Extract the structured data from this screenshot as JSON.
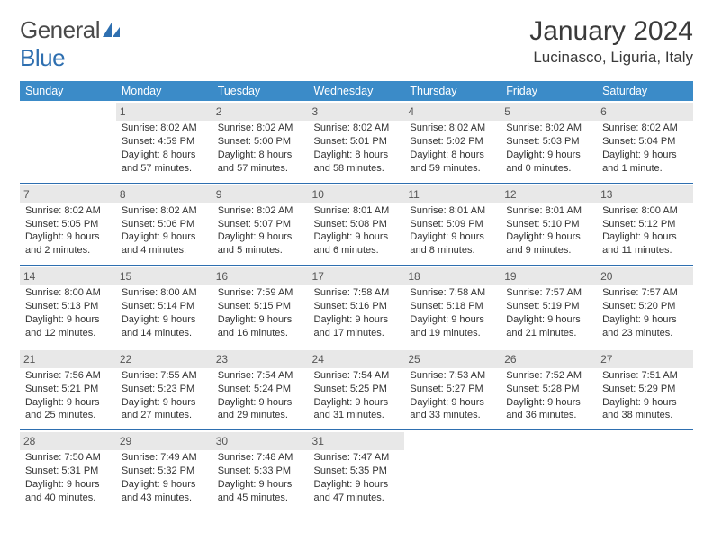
{
  "brand": {
    "word1": "General",
    "word2": "Blue"
  },
  "title": {
    "month": "January 2024",
    "location": "Lucinasco, Liguria, Italy"
  },
  "colors": {
    "header_bg": "#3b8bc8",
    "daynum_bg": "#e8e8e8",
    "rule": "#2e6fb0",
    "text": "#333333"
  },
  "day_headers": [
    "Sunday",
    "Monday",
    "Tuesday",
    "Wednesday",
    "Thursday",
    "Friday",
    "Saturday"
  ],
  "weeks": [
    [
      null,
      {
        "n": "1",
        "sr": "Sunrise: 8:02 AM",
        "ss": "Sunset: 4:59 PM",
        "dl": "Daylight: 8 hours and 57 minutes."
      },
      {
        "n": "2",
        "sr": "Sunrise: 8:02 AM",
        "ss": "Sunset: 5:00 PM",
        "dl": "Daylight: 8 hours and 57 minutes."
      },
      {
        "n": "3",
        "sr": "Sunrise: 8:02 AM",
        "ss": "Sunset: 5:01 PM",
        "dl": "Daylight: 8 hours and 58 minutes."
      },
      {
        "n": "4",
        "sr": "Sunrise: 8:02 AM",
        "ss": "Sunset: 5:02 PM",
        "dl": "Daylight: 8 hours and 59 minutes."
      },
      {
        "n": "5",
        "sr": "Sunrise: 8:02 AM",
        "ss": "Sunset: 5:03 PM",
        "dl": "Daylight: 9 hours and 0 minutes."
      },
      {
        "n": "6",
        "sr": "Sunrise: 8:02 AM",
        "ss": "Sunset: 5:04 PM",
        "dl": "Daylight: 9 hours and 1 minute."
      }
    ],
    [
      {
        "n": "7",
        "sr": "Sunrise: 8:02 AM",
        "ss": "Sunset: 5:05 PM",
        "dl": "Daylight: 9 hours and 2 minutes."
      },
      {
        "n": "8",
        "sr": "Sunrise: 8:02 AM",
        "ss": "Sunset: 5:06 PM",
        "dl": "Daylight: 9 hours and 4 minutes."
      },
      {
        "n": "9",
        "sr": "Sunrise: 8:02 AM",
        "ss": "Sunset: 5:07 PM",
        "dl": "Daylight: 9 hours and 5 minutes."
      },
      {
        "n": "10",
        "sr": "Sunrise: 8:01 AM",
        "ss": "Sunset: 5:08 PM",
        "dl": "Daylight: 9 hours and 6 minutes."
      },
      {
        "n": "11",
        "sr": "Sunrise: 8:01 AM",
        "ss": "Sunset: 5:09 PM",
        "dl": "Daylight: 9 hours and 8 minutes."
      },
      {
        "n": "12",
        "sr": "Sunrise: 8:01 AM",
        "ss": "Sunset: 5:10 PM",
        "dl": "Daylight: 9 hours and 9 minutes."
      },
      {
        "n": "13",
        "sr": "Sunrise: 8:00 AM",
        "ss": "Sunset: 5:12 PM",
        "dl": "Daylight: 9 hours and 11 minutes."
      }
    ],
    [
      {
        "n": "14",
        "sr": "Sunrise: 8:00 AM",
        "ss": "Sunset: 5:13 PM",
        "dl": "Daylight: 9 hours and 12 minutes."
      },
      {
        "n": "15",
        "sr": "Sunrise: 8:00 AM",
        "ss": "Sunset: 5:14 PM",
        "dl": "Daylight: 9 hours and 14 minutes."
      },
      {
        "n": "16",
        "sr": "Sunrise: 7:59 AM",
        "ss": "Sunset: 5:15 PM",
        "dl": "Daylight: 9 hours and 16 minutes."
      },
      {
        "n": "17",
        "sr": "Sunrise: 7:58 AM",
        "ss": "Sunset: 5:16 PM",
        "dl": "Daylight: 9 hours and 17 minutes."
      },
      {
        "n": "18",
        "sr": "Sunrise: 7:58 AM",
        "ss": "Sunset: 5:18 PM",
        "dl": "Daylight: 9 hours and 19 minutes."
      },
      {
        "n": "19",
        "sr": "Sunrise: 7:57 AM",
        "ss": "Sunset: 5:19 PM",
        "dl": "Daylight: 9 hours and 21 minutes."
      },
      {
        "n": "20",
        "sr": "Sunrise: 7:57 AM",
        "ss": "Sunset: 5:20 PM",
        "dl": "Daylight: 9 hours and 23 minutes."
      }
    ],
    [
      {
        "n": "21",
        "sr": "Sunrise: 7:56 AM",
        "ss": "Sunset: 5:21 PM",
        "dl": "Daylight: 9 hours and 25 minutes."
      },
      {
        "n": "22",
        "sr": "Sunrise: 7:55 AM",
        "ss": "Sunset: 5:23 PM",
        "dl": "Daylight: 9 hours and 27 minutes."
      },
      {
        "n": "23",
        "sr": "Sunrise: 7:54 AM",
        "ss": "Sunset: 5:24 PM",
        "dl": "Daylight: 9 hours and 29 minutes."
      },
      {
        "n": "24",
        "sr": "Sunrise: 7:54 AM",
        "ss": "Sunset: 5:25 PM",
        "dl": "Daylight: 9 hours and 31 minutes."
      },
      {
        "n": "25",
        "sr": "Sunrise: 7:53 AM",
        "ss": "Sunset: 5:27 PM",
        "dl": "Daylight: 9 hours and 33 minutes."
      },
      {
        "n": "26",
        "sr": "Sunrise: 7:52 AM",
        "ss": "Sunset: 5:28 PM",
        "dl": "Daylight: 9 hours and 36 minutes."
      },
      {
        "n": "27",
        "sr": "Sunrise: 7:51 AM",
        "ss": "Sunset: 5:29 PM",
        "dl": "Daylight: 9 hours and 38 minutes."
      }
    ],
    [
      {
        "n": "28",
        "sr": "Sunrise: 7:50 AM",
        "ss": "Sunset: 5:31 PM",
        "dl": "Daylight: 9 hours and 40 minutes."
      },
      {
        "n": "29",
        "sr": "Sunrise: 7:49 AM",
        "ss": "Sunset: 5:32 PM",
        "dl": "Daylight: 9 hours and 43 minutes."
      },
      {
        "n": "30",
        "sr": "Sunrise: 7:48 AM",
        "ss": "Sunset: 5:33 PM",
        "dl": "Daylight: 9 hours and 45 minutes."
      },
      {
        "n": "31",
        "sr": "Sunrise: 7:47 AM",
        "ss": "Sunset: 5:35 PM",
        "dl": "Daylight: 9 hours and 47 minutes."
      },
      null,
      null,
      null
    ]
  ]
}
